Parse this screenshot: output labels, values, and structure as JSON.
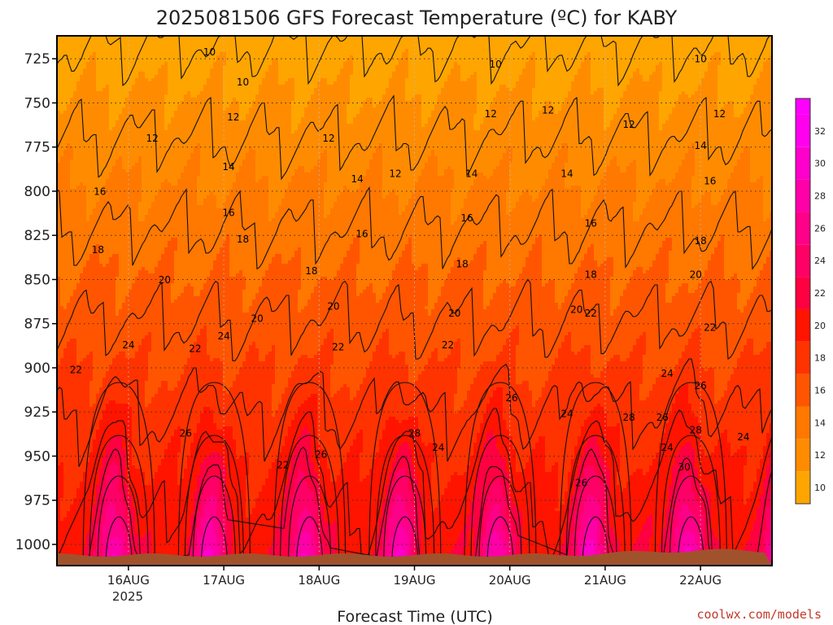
{
  "chart_data": {
    "type": "heatmap",
    "title": "2025081506 GFS Forecast Temperature (ºC) for KABY",
    "xlabel": "Forecast Time (UTC)",
    "ylabel": "",
    "y_axis": {
      "ticks": [
        725,
        750,
        775,
        800,
        825,
        850,
        875,
        900,
        925,
        950,
        975,
        1000
      ],
      "range": [
        712,
        1012
      ],
      "inverted": true
    },
    "x_axis": {
      "ticks": [
        "16AUG",
        "17AUG",
        "18AUG",
        "19AUG",
        "20AUG",
        "21AUG",
        "22AUG"
      ],
      "year_label": "2025",
      "range_days": [
        -0.75,
        6.75
      ]
    },
    "grid": true,
    "colorbar": {
      "placement": "right",
      "ticks": [
        10,
        12,
        14,
        16,
        18,
        20,
        22,
        24,
        26,
        28,
        30,
        32
      ],
      "range": [
        9,
        34
      ],
      "colors": [
        "#FFA500",
        "#FF8C00",
        "#FF7800",
        "#FF5500",
        "#FF3300",
        "#FF1400",
        "#FF0040",
        "#FF0066",
        "#FF0088",
        "#FF00A8",
        "#FF00CC",
        "#FF00EE",
        "#FF00FF"
      ]
    },
    "contour_levels": [
      10,
      12,
      14,
      16,
      18,
      20,
      22,
      24,
      26,
      28,
      30
    ],
    "contour_labels": [
      {
        "text": "10",
        "day": 0.85,
        "p": 723
      },
      {
        "text": "10",
        "day": 1.2,
        "p": 740
      },
      {
        "text": "10",
        "day": 3.85,
        "p": 730
      },
      {
        "text": "10",
        "day": 6.0,
        "p": 727
      },
      {
        "text": "12",
        "day": 1.1,
        "p": 760
      },
      {
        "text": "12",
        "day": 0.25,
        "p": 772
      },
      {
        "text": "12",
        "day": 2.1,
        "p": 772
      },
      {
        "text": "12",
        "day": 3.8,
        "p": 758
      },
      {
        "text": "12",
        "day": 4.4,
        "p": 756
      },
      {
        "text": "12",
        "day": 5.25,
        "p": 764
      },
      {
        "text": "12",
        "day": 6.2,
        "p": 758
      },
      {
        "text": "12",
        "day": 2.8,
        "p": 792
      },
      {
        "text": "14",
        "day": 1.05,
        "p": 788
      },
      {
        "text": "14",
        "day": 2.4,
        "p": 795
      },
      {
        "text": "14",
        "day": 3.6,
        "p": 792
      },
      {
        "text": "14",
        "day": 4.6,
        "p": 792
      },
      {
        "text": "14",
        "day": 6.0,
        "p": 776
      },
      {
        "text": "16",
        "day": -0.3,
        "p": 802
      },
      {
        "text": "16",
        "day": 1.05,
        "p": 814
      },
      {
        "text": "16",
        "day": 2.45,
        "p": 826
      },
      {
        "text": "16",
        "day": 3.55,
        "p": 817
      },
      {
        "text": "16",
        "day": 4.85,
        "p": 820
      },
      {
        "text": "16",
        "day": 6.1,
        "p": 796
      },
      {
        "text": "18",
        "day": -0.32,
        "p": 835
      },
      {
        "text": "18",
        "day": 1.2,
        "p": 829
      },
      {
        "text": "18",
        "day": 1.92,
        "p": 847
      },
      {
        "text": "18",
        "day": 3.5,
        "p": 843
      },
      {
        "text": "18",
        "day": 4.85,
        "p": 849
      },
      {
        "text": "18",
        "day": 6.0,
        "p": 830
      },
      {
        "text": "20",
        "day": 0.38,
        "p": 852
      },
      {
        "text": "20",
        "day": 1.35,
        "p": 874
      },
      {
        "text": "20",
        "day": 2.15,
        "p": 867
      },
      {
        "text": "20",
        "day": 3.42,
        "p": 871
      },
      {
        "text": "20",
        "day": 4.7,
        "p": 869
      },
      {
        "text": "20",
        "day": 5.95,
        "p": 849
      },
      {
        "text": "22",
        "day": -0.55,
        "p": 903
      },
      {
        "text": "22",
        "day": 0.7,
        "p": 891
      },
      {
        "text": "22",
        "day": 2.2,
        "p": 890
      },
      {
        "text": "22",
        "day": 3.35,
        "p": 889
      },
      {
        "text": "22",
        "day": 4.85,
        "p": 871
      },
      {
        "text": "22",
        "day": 6.1,
        "p": 879
      },
      {
        "text": "24",
        "day": 0.0,
        "p": 889
      },
      {
        "text": "24",
        "day": 1.0,
        "p": 884
      },
      {
        "text": "24",
        "day": 3.25,
        "p": 947
      },
      {
        "text": "24",
        "day": 4.6,
        "p": 928
      },
      {
        "text": "24",
        "day": 5.65,
        "p": 905
      },
      {
        "text": "24",
        "day": 5.65,
        "p": 947
      },
      {
        "text": "24",
        "day": 6.45,
        "p": 941
      },
      {
        "text": "26",
        "day": 0.6,
        "p": 939
      },
      {
        "text": "26",
        "day": 2.02,
        "p": 951
      },
      {
        "text": "26",
        "day": 4.02,
        "p": 919
      },
      {
        "text": "26",
        "day": 5.6,
        "p": 930
      },
      {
        "text": "26",
        "day": 6.0,
        "p": 912
      },
      {
        "text": "26",
        "day": 4.75,
        "p": 967
      },
      {
        "text": "22",
        "day": 1.62,
        "p": 957
      },
      {
        "text": "28",
        "day": 3.0,
        "p": 939
      },
      {
        "text": "28",
        "day": 5.25,
        "p": 930
      },
      {
        "text": "28",
        "day": 5.95,
        "p": 937
      },
      {
        "text": "30",
        "day": 5.83,
        "p": 958
      }
    ],
    "credit": "coolwx.com/models"
  }
}
